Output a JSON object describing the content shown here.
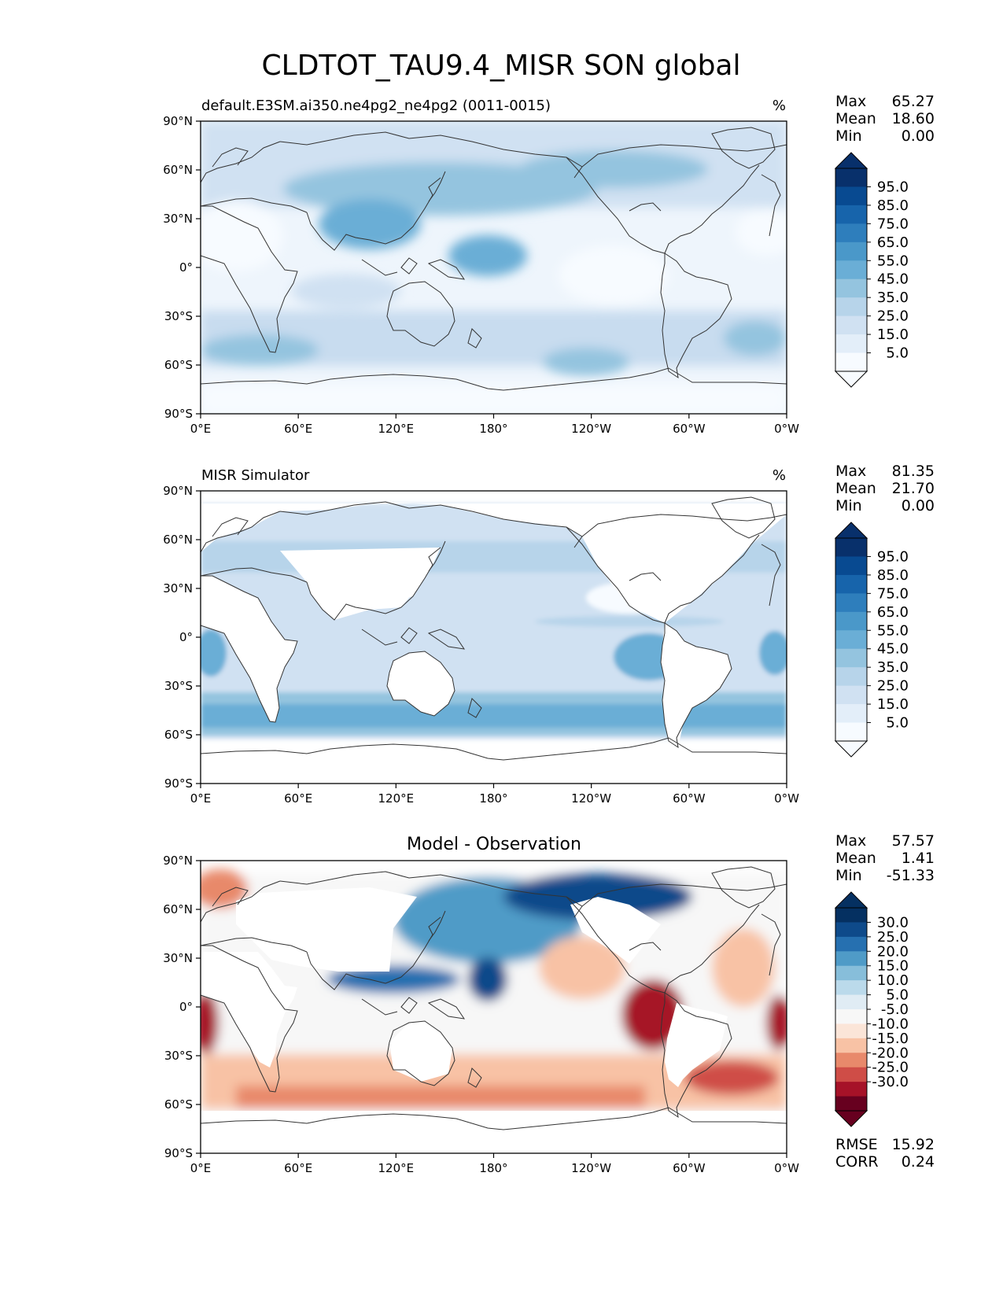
{
  "figure_title": "CLDTOT_TAU9.4_MISR SON global",
  "colors": {
    "blues": [
      "#f7fbff",
      "#e3eef9",
      "#d0e1f2",
      "#b7d4ea",
      "#94c4df",
      "#6aaed6",
      "#4a98c9",
      "#2e7ebc",
      "#1764ab",
      "#084a91",
      "#08306b"
    ],
    "diverging": [
      "#67001f",
      "#a61228",
      "#cf4d47",
      "#e8896b",
      "#f8c2a5",
      "#fbe5d8",
      "#f7f7f7",
      "#e0ecf4",
      "#bbdaeb",
      "#87beda",
      "#4f9bc7",
      "#2670b0",
      "#0e4a8a",
      "#053061"
    ],
    "land_outline": "#333333"
  },
  "chart_data": [
    {
      "type": "heatmap",
      "name": "model",
      "title_left": "default.E3SM.ai350.ne4pg2_ne4pg2 (0011-0015)",
      "title_center": "",
      "units": "%",
      "stats": [
        {
          "label": "Max",
          "value": "65.27"
        },
        {
          "label": "Mean",
          "value": "18.60"
        },
        {
          "label": "Min",
          "value": "0.00"
        }
      ],
      "colorbar_ticks": [
        "95.0",
        "85.0",
        "75.0",
        "65.0",
        "55.0",
        "45.0",
        "35.0",
        "25.0",
        "15.0",
        "5.0"
      ],
      "x_ticks": [
        "0°E",
        "60°E",
        "120°E",
        "180°",
        "120°W",
        "60°W",
        "0°W"
      ],
      "y_ticks": [
        "90°N",
        "60°N",
        "30°N",
        "0°",
        "30°S",
        "60°S",
        "90°S"
      ],
      "x_range": [
        0,
        360
      ],
      "y_range": [
        -90,
        90
      ]
    },
    {
      "type": "heatmap",
      "name": "obs",
      "title_left": "MISR Simulator",
      "title_center": "",
      "units": "%",
      "stats": [
        {
          "label": "Max",
          "value": "81.35"
        },
        {
          "label": "Mean",
          "value": "21.70"
        },
        {
          "label": "Min",
          "value": "0.00"
        }
      ],
      "colorbar_ticks": [
        "95.0",
        "85.0",
        "75.0",
        "65.0",
        "55.0",
        "45.0",
        "35.0",
        "25.0",
        "15.0",
        "5.0"
      ],
      "x_ticks": [
        "0°E",
        "60°E",
        "120°E",
        "180°",
        "120°W",
        "60°W",
        "0°W"
      ],
      "y_ticks": [
        "90°N",
        "60°N",
        "30°N",
        "0°",
        "30°S",
        "60°S",
        "90°S"
      ],
      "x_range": [
        0,
        360
      ],
      "y_range": [
        -90,
        90
      ]
    },
    {
      "type": "heatmap",
      "name": "diff",
      "title_left": "",
      "title_center": "Model - Observation",
      "units": "",
      "stats": [
        {
          "label": "Max",
          "value": "57.57"
        },
        {
          "label": "Mean",
          "value": "1.41"
        },
        {
          "label": "Min",
          "value": "-51.33"
        }
      ],
      "extra_stats": [
        {
          "label": "RMSE",
          "value": "15.92"
        },
        {
          "label": "CORR",
          "value": "0.24"
        }
      ],
      "colorbar_ticks": [
        "30.0",
        "25.0",
        "20.0",
        "15.0",
        "10.0",
        "5.0",
        "-5.0",
        "-10.0",
        "-15.0",
        "-20.0",
        "-25.0",
        "-30.0"
      ],
      "x_ticks": [
        "0°E",
        "60°E",
        "120°E",
        "180°",
        "120°W",
        "60°W",
        "0°W"
      ],
      "y_ticks": [
        "90°N",
        "60°N",
        "30°N",
        "0°",
        "30°S",
        "60°S",
        "90°S"
      ],
      "x_range": [
        0,
        360
      ],
      "y_range": [
        -90,
        90
      ]
    }
  ]
}
